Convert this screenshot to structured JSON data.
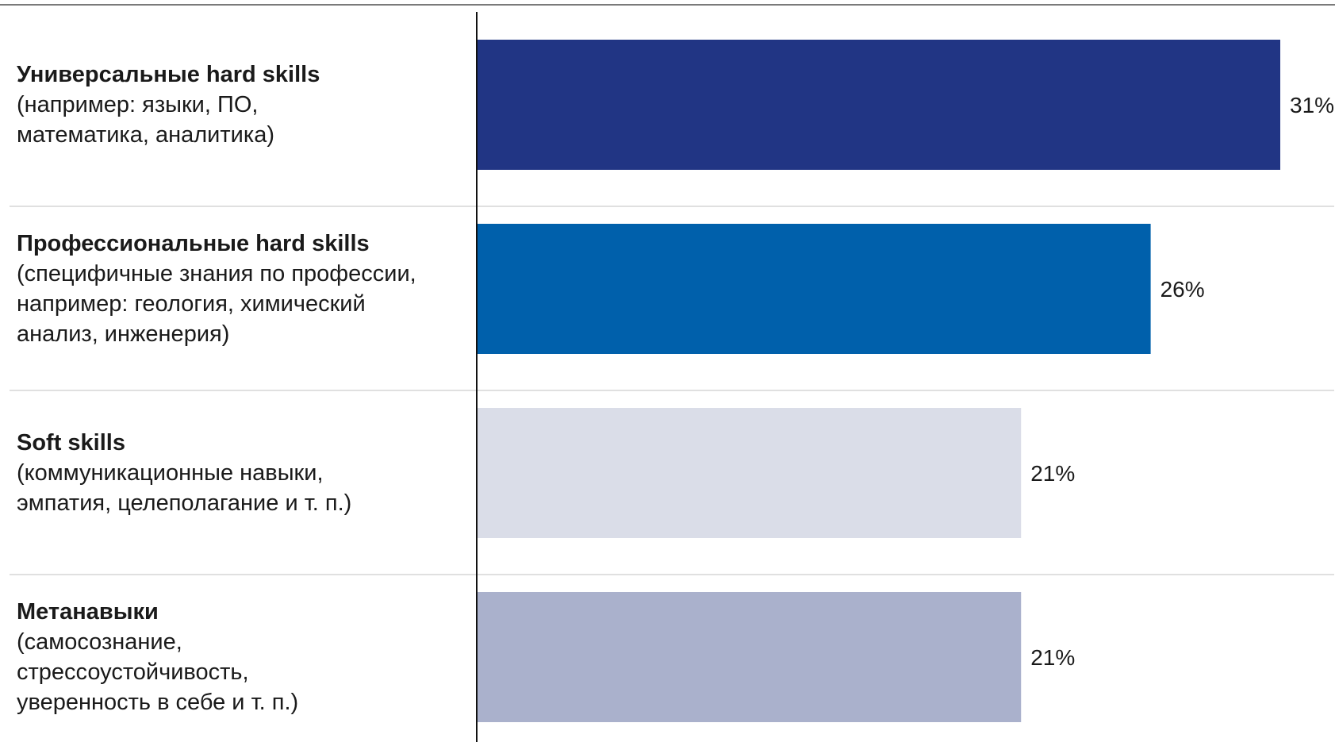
{
  "chart_data": {
    "type": "bar",
    "orientation": "horizontal",
    "categories": [
      {
        "title": "Универсальные hard skills",
        "lines": [
          "(например: языки, ПО,",
          "математика, аналитика)"
        ]
      },
      {
        "title": "Профессиональные hard skills",
        "lines": [
          "(специфичные знания по профессии,",
          "например: геология, химический",
          "анализ, инженерия)"
        ]
      },
      {
        "title": "Soft skills",
        "lines": [
          "(коммуникационные навыки,",
          "эмпатия, целеполагание и т. п.)"
        ]
      },
      {
        "title": "Метанавыки",
        "lines": [
          "(самосознание,",
          "стрессоустойчивость,",
          "уверенность в себе и т. п.)"
        ]
      }
    ],
    "values": [
      31,
      26,
      21,
      21
    ],
    "value_labels": [
      "31%",
      "26%",
      "21%",
      "21%"
    ],
    "bar_colors": [
      "#213584",
      "#0060ab",
      "#dadde8",
      "#aab1cc"
    ],
    "xlim": [
      0,
      31
    ],
    "title": "",
    "xlabel": "",
    "ylabel": "",
    "grid": false,
    "legend": "none"
  }
}
